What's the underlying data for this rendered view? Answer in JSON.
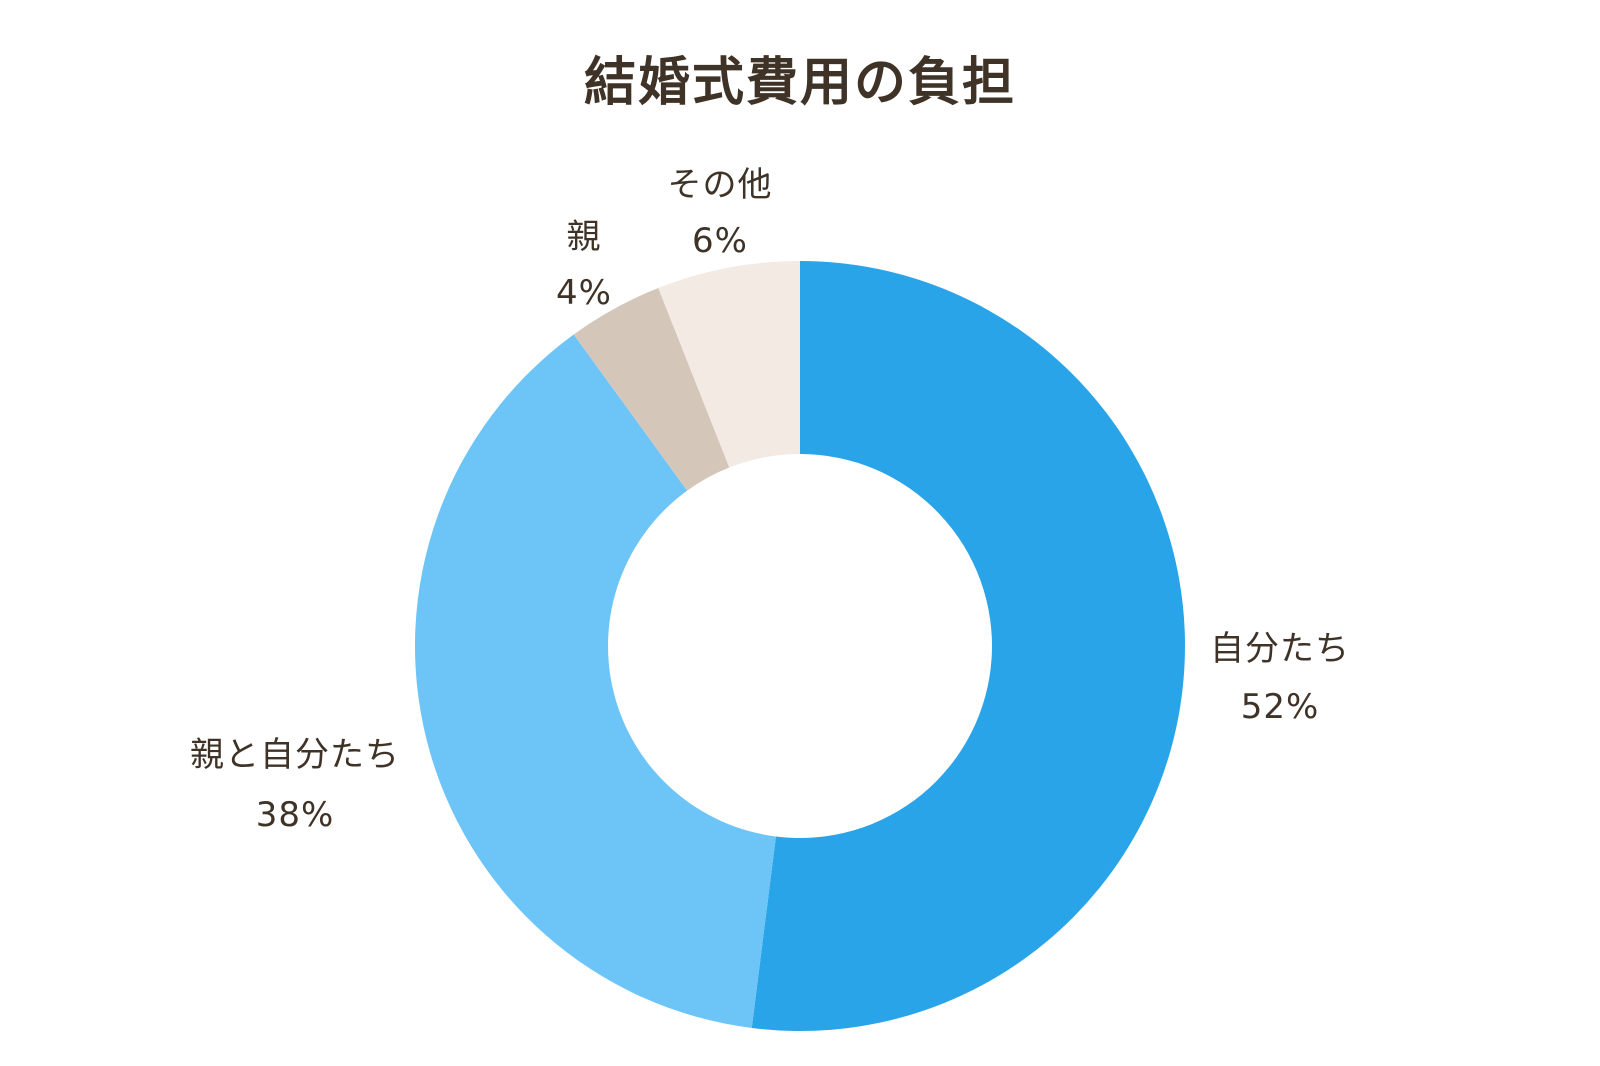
{
  "chart_data": {
    "type": "pie",
    "variant": "donut",
    "title": "結婚式費用の負担",
    "start": "top",
    "direction": "clockwise",
    "slices": [
      {
        "label": "自分たち",
        "value": 52,
        "display": "52%",
        "color": "#29a4e8"
      },
      {
        "label": "親と自分たち",
        "value": 38,
        "display": "38%",
        "color": "#6cc4f7"
      },
      {
        "label": "親",
        "value": 4,
        "display": "4%",
        "color": "#d4c7ba"
      },
      {
        "label": "その他",
        "value": 6,
        "display": "6%",
        "color": "#f3eae3"
      }
    ],
    "legend": "none"
  }
}
